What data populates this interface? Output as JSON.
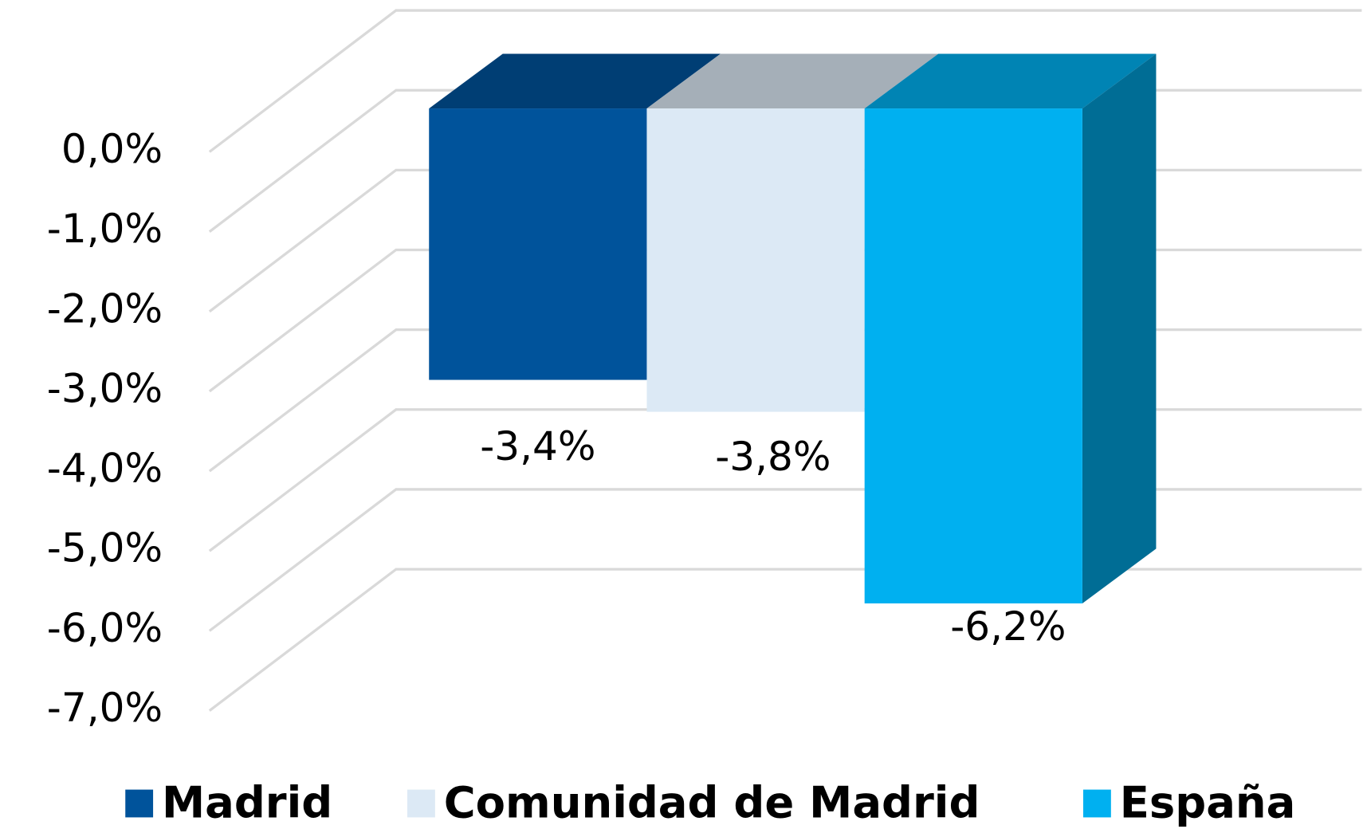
{
  "chart_data": {
    "type": "bar",
    "series": [
      {
        "name": "Madrid",
        "color": "#00539b",
        "values": [
          -3.4
        ],
        "value_labels": [
          "-3,4%"
        ]
      },
      {
        "name": "Comunidad de Madrid",
        "color": "#dce9f5",
        "values": [
          -3.8
        ],
        "value_labels": [
          "-3,8%"
        ]
      },
      {
        "name": "España",
        "color": "#00b0f0",
        "values": [
          -6.2
        ],
        "value_labels": [
          "-6,2%"
        ]
      }
    ],
    "ylim": [
      -7,
      0
    ],
    "yticks": [
      {
        "value": 0,
        "label": "0,0%"
      },
      {
        "value": -1,
        "label": "-1,0%"
      },
      {
        "value": -2,
        "label": "-2,0%"
      },
      {
        "value": -3,
        "label": "-3,0%"
      },
      {
        "value": -4,
        "label": "-4,0%"
      },
      {
        "value": -5,
        "label": "-5,0%"
      },
      {
        "value": -6,
        "label": "-6,0%"
      },
      {
        "value": -7,
        "label": "-7,0%"
      }
    ],
    "grid": true,
    "legend": "bottom"
  }
}
